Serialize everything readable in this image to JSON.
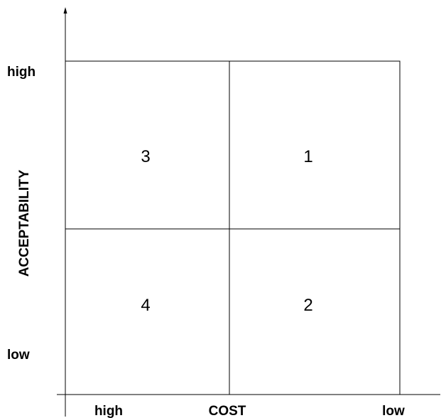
{
  "y_axis": {
    "title": "ACCEPTABILITY",
    "high_label": "high",
    "low_label": "low"
  },
  "x_axis": {
    "title": "COST",
    "high_label": "high",
    "low_label": "low"
  },
  "quadrants": {
    "top_left": "3",
    "top_right": "1",
    "bottom_left": "4",
    "bottom_right": "2"
  },
  "colors": {
    "line": "#000000",
    "text": "#000000",
    "background": "#ffffff"
  }
}
